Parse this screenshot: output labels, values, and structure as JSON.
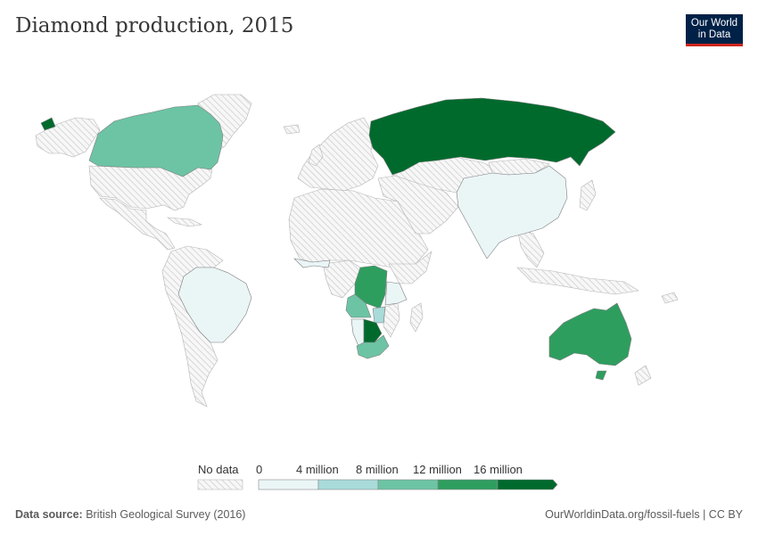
{
  "title": "Diamond production, 2015",
  "logo": {
    "line1": "Our World",
    "line2": "in Data"
  },
  "legend": {
    "no_data_label": "No data",
    "ticks": [
      "0",
      "4 million",
      "8 million",
      "12 million",
      "16 million"
    ],
    "bins": [
      {
        "range": [
          0,
          4000000
        ],
        "color": "#eaf5f6"
      },
      {
        "range": [
          4000000,
          8000000
        ],
        "color": "#a8dbd9"
      },
      {
        "range": [
          8000000,
          12000000
        ],
        "color": "#6cc4a5"
      },
      {
        "range": [
          12000000,
          16000000
        ],
        "color": "#2e9e5f"
      },
      {
        "range": [
          16000000,
          20000000
        ],
        "color": "#006a2d"
      }
    ]
  },
  "colors": {
    "no_data_fill": "#efefef",
    "hatch": "#d4d4d4",
    "border": "#9a9a9a"
  },
  "footer": {
    "source_label": "Data source:",
    "source_text": "British Geological Survey (2016)",
    "url": "OurWorldinData.org/fossil-fuels | CC BY"
  },
  "regions": {
    "russia": "#006a2d",
    "botswana": "#006a2d",
    "greenland_tip": "#006a2d",
    "canada": "#6cc4a5",
    "south_africa": "#6cc4a5",
    "angola": "#6cc4a5",
    "dr_congo": "#2e9e5f",
    "australia": "#2e9e5f",
    "brazil": "#eaf5f6",
    "china_india": "#eaf5f6",
    "west_africa": "#eaf5f6",
    "namibia": "#eaf5f6",
    "tanzania": "#eaf5f6",
    "zimbabwe": "#a8dbd9"
  }
}
